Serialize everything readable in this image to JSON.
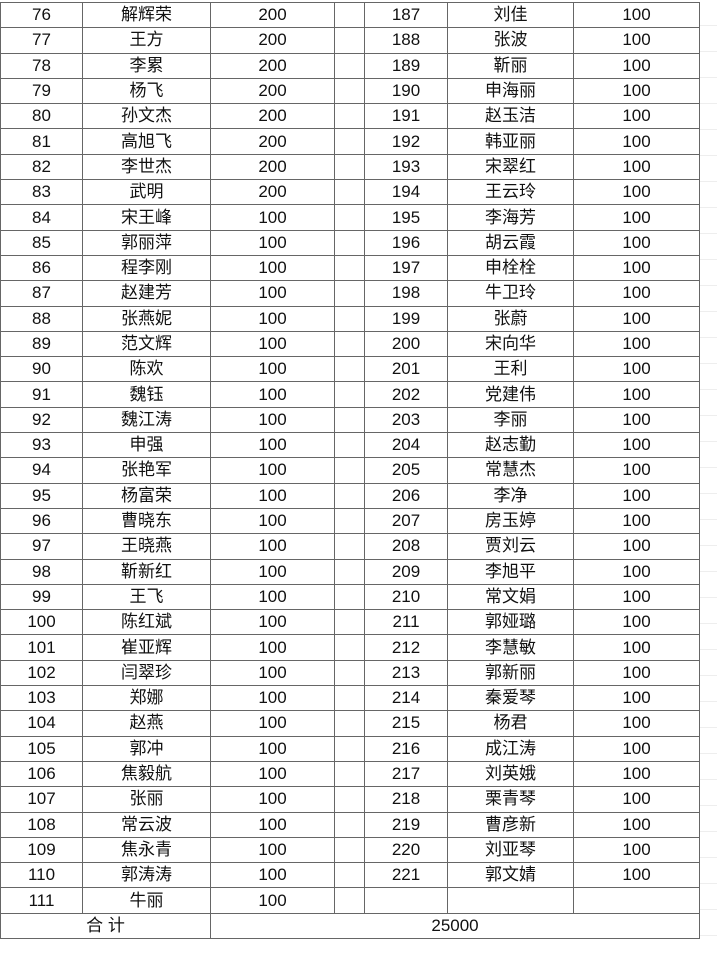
{
  "left_rows": [
    [
      "76",
      "解辉荣",
      "200"
    ],
    [
      "77",
      "王方",
      "200"
    ],
    [
      "78",
      "李累",
      "200"
    ],
    [
      "79",
      "杨飞",
      "200"
    ],
    [
      "80",
      "孙文杰",
      "200"
    ],
    [
      "81",
      "高旭飞",
      "200"
    ],
    [
      "82",
      "李世杰",
      "200"
    ],
    [
      "83",
      "武明",
      "200"
    ],
    [
      "84",
      "宋王峰",
      "100"
    ],
    [
      "85",
      "郭丽萍",
      "100"
    ],
    [
      "86",
      "程李刚",
      "100"
    ],
    [
      "87",
      "赵建芳",
      "100"
    ],
    [
      "88",
      "张燕妮",
      "100"
    ],
    [
      "89",
      "范文辉",
      "100"
    ],
    [
      "90",
      "陈欢",
      "100"
    ],
    [
      "91",
      "魏钰",
      "100"
    ],
    [
      "92",
      "魏江涛",
      "100"
    ],
    [
      "93",
      "申强",
      "100"
    ],
    [
      "94",
      "张艳军",
      "100"
    ],
    [
      "95",
      "杨富荣",
      "100"
    ],
    [
      "96",
      "曹晓东",
      "100"
    ],
    [
      "97",
      "王晓燕",
      "100"
    ],
    [
      "98",
      "靳新红",
      "100"
    ],
    [
      "99",
      "王飞",
      "100"
    ],
    [
      "100",
      "陈红斌",
      "100"
    ],
    [
      "101",
      "崔亚辉",
      "100"
    ],
    [
      "102",
      "闫翠珍",
      "100"
    ],
    [
      "103",
      "郑娜",
      "100"
    ],
    [
      "104",
      "赵燕",
      "100"
    ],
    [
      "105",
      "郭冲",
      "100"
    ],
    [
      "106",
      "焦毅航",
      "100"
    ],
    [
      "107",
      "张丽",
      "100"
    ],
    [
      "108",
      "常云波",
      "100"
    ],
    [
      "109",
      "焦永青",
      "100"
    ],
    [
      "110",
      "郭涛涛",
      "100"
    ],
    [
      "111",
      "牛丽",
      "100"
    ]
  ],
  "right_rows": [
    [
      "187",
      "刘佳",
      "100"
    ],
    [
      "188",
      "张波",
      "100"
    ],
    [
      "189",
      "靳丽",
      "100"
    ],
    [
      "190",
      "申海丽",
      "100"
    ],
    [
      "191",
      "赵玉洁",
      "100"
    ],
    [
      "192",
      "韩亚丽",
      "100"
    ],
    [
      "193",
      "宋翠红",
      "100"
    ],
    [
      "194",
      "王云玲",
      "100"
    ],
    [
      "195",
      "李海芳",
      "100"
    ],
    [
      "196",
      "胡云霞",
      "100"
    ],
    [
      "197",
      "申栓栓",
      "100"
    ],
    [
      "198",
      "牛卫玲",
      "100"
    ],
    [
      "199",
      "张蔚",
      "100"
    ],
    [
      "200",
      "宋向华",
      "100"
    ],
    [
      "201",
      "王利",
      "100"
    ],
    [
      "202",
      "党建伟",
      "100"
    ],
    [
      "203",
      "李丽",
      "100"
    ],
    [
      "204",
      "赵志勤",
      "100"
    ],
    [
      "205",
      "常慧杰",
      "100"
    ],
    [
      "206",
      "李净",
      "100"
    ],
    [
      "207",
      "房玉婷",
      "100"
    ],
    [
      "208",
      "贾刘云",
      "100"
    ],
    [
      "209",
      "李旭平",
      "100"
    ],
    [
      "210",
      "常文娟",
      "100"
    ],
    [
      "211",
      "郭娅璐",
      "100"
    ],
    [
      "212",
      "李慧敏",
      "100"
    ],
    [
      "213",
      "郭新丽",
      "100"
    ],
    [
      "214",
      "秦爱琴",
      "100"
    ],
    [
      "215",
      "杨君",
      "100"
    ],
    [
      "216",
      "成江涛",
      "100"
    ],
    [
      "217",
      "刘英娥",
      "100"
    ],
    [
      "218",
      "栗青琴",
      "100"
    ],
    [
      "219",
      "曹彦新",
      "100"
    ],
    [
      "220",
      "刘亚琴",
      "100"
    ],
    [
      "221",
      "郭文婧",
      "100"
    ]
  ],
  "total": {
    "label": "合 计",
    "value": "25000"
  }
}
